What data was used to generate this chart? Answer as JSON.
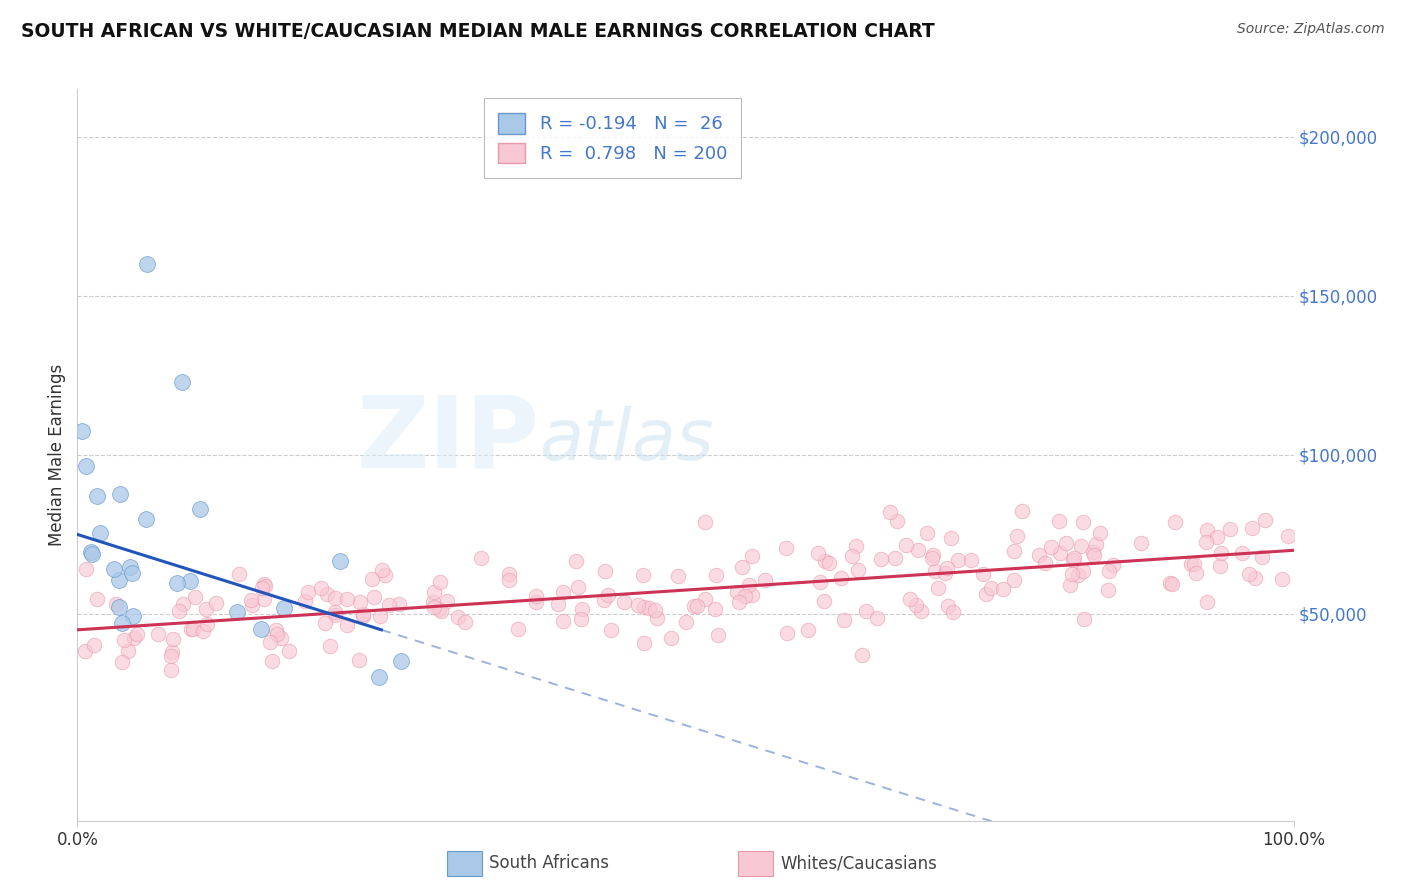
{
  "title": "SOUTH AFRICAN VS WHITE/CAUCASIAN MEDIAN MALE EARNINGS CORRELATION CHART",
  "source_text": "Source: ZipAtlas.com",
  "ylabel": "Median Male Earnings",
  "xlim": [
    0,
    1
  ],
  "ylim": [
    -15000,
    215000
  ],
  "blue_R": -0.194,
  "blue_N": 26,
  "pink_R": 0.798,
  "pink_N": 200,
  "blue_dot_color": "#aac8e8",
  "blue_edge_color": "#6699cc",
  "pink_dot_color": "#f8c8d4",
  "pink_edge_color": "#e899aa",
  "trend_blue": "#2255bb",
  "trend_pink": "#cc3355",
  "background": "#ffffff",
  "grid_color": "#c8c8c8",
  "wm_ZIP_color": "#d8e8f4",
  "wm_atlas_color": "#c0d8f0",
  "legend_label_blue": "South Africans",
  "legend_label_pink": "Whites/Caucasians",
  "legend_blue_face": "#aac8e8",
  "legend_blue_edge": "#6699cc",
  "legend_pink_face": "#f8c8d4",
  "legend_pink_edge": "#e899aa",
  "blue_line_intercept": 75000,
  "blue_line_slope": -120000,
  "pink_line_intercept": 45000,
  "pink_line_slope": 25000,
  "blue_seed": 12,
  "pink_seed": 99
}
